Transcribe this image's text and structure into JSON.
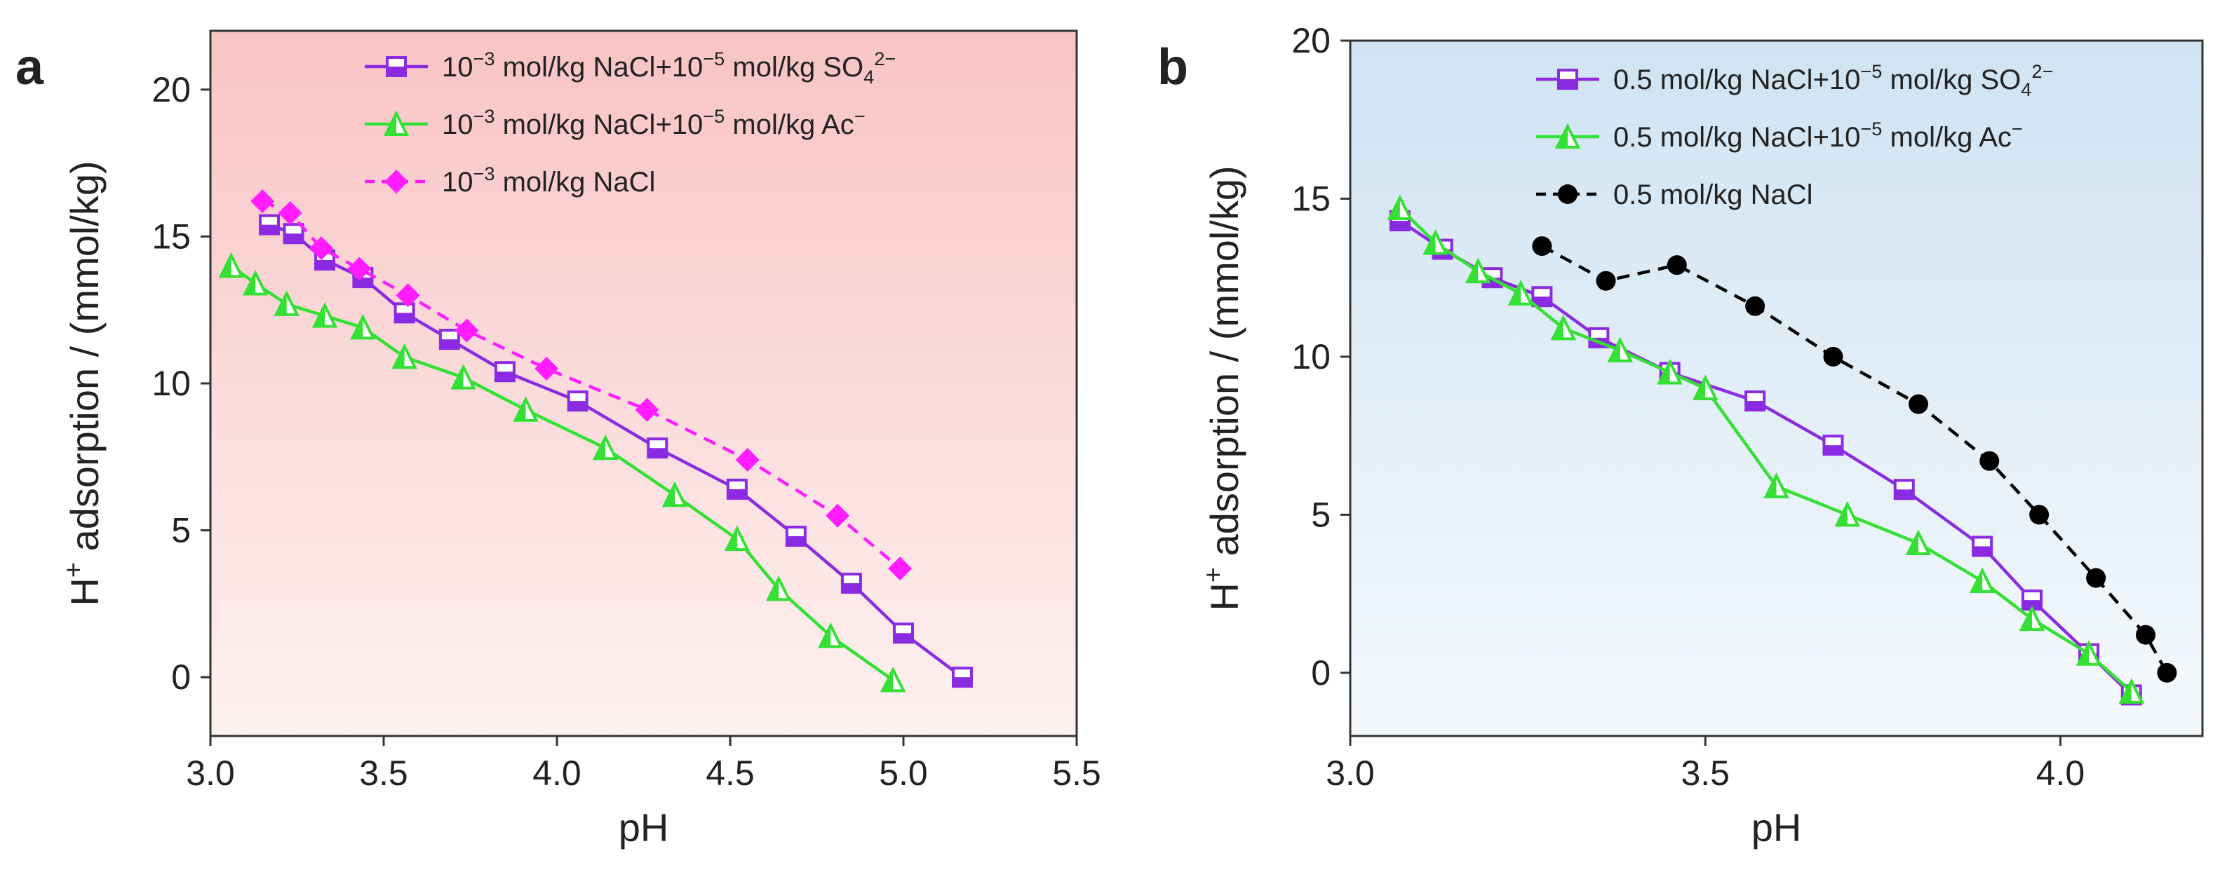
{
  "chart_data": [
    {
      "panel": "a",
      "type": "line",
      "xlabel": "pH",
      "ylabel": "H⁺ adsorption / (mmol/kg)",
      "xlim": [
        3.0,
        5.5
      ],
      "ylim": [
        -2,
        22
      ],
      "xticks": [
        "3.0",
        "3.5",
        "4.0",
        "4.5",
        "5.0",
        "5.5"
      ],
      "yticks": [
        "0",
        "5",
        "10",
        "15",
        "20"
      ],
      "background": [
        "#f9c4c4",
        "#fdf1f1"
      ],
      "legend_position": "top-right",
      "series": [
        {
          "name": "10⁻³ mol/kg NaCl+10⁻⁵ mol/kg SO₄²⁻",
          "color": "#8a2be2",
          "marker": "half-square",
          "line": "solid",
          "x": [
            3.17,
            3.24,
            3.33,
            3.44,
            3.56,
            3.69,
            3.85,
            4.06,
            4.29,
            4.52,
            4.69,
            4.85,
            5.0,
            5.17
          ],
          "y": [
            15.4,
            15.1,
            14.2,
            13.6,
            12.4,
            11.5,
            10.4,
            9.4,
            7.8,
            6.4,
            4.8,
            3.2,
            1.5,
            0.0
          ]
        },
        {
          "name": "10⁻³ mol/kg NaCl+10⁻⁵ mol/kg Ac⁻",
          "color": "#33e033",
          "marker": "half-triangle",
          "line": "solid",
          "x": [
            3.06,
            3.13,
            3.22,
            3.33,
            3.44,
            3.56,
            3.73,
            3.91,
            4.14,
            4.34,
            4.52,
            4.64,
            4.79,
            4.97
          ],
          "y": [
            14.0,
            13.4,
            12.7,
            12.3,
            11.9,
            10.9,
            10.2,
            9.1,
            7.8,
            6.2,
            4.7,
            3.0,
            1.4,
            -0.1
          ]
        },
        {
          "name": "10⁻³ mol/kg NaCl",
          "color": "#ff1cff",
          "marker": "diamond",
          "line": "dashed",
          "x": [
            3.15,
            3.23,
            3.32,
            3.43,
            3.57,
            3.74,
            3.97,
            4.26,
            4.55,
            4.81,
            4.99
          ],
          "y": [
            16.2,
            15.8,
            14.6,
            13.9,
            13.0,
            11.8,
            10.5,
            9.1,
            7.4,
            5.5,
            3.7
          ]
        }
      ]
    },
    {
      "panel": "b",
      "type": "line",
      "xlabel": "pH",
      "ylabel": "H⁺ adsorption / (mmol/kg)",
      "xlim": [
        3.0,
        4.2
      ],
      "ylim": [
        -2,
        20
      ],
      "xticks": [
        "3.0",
        "3.5",
        "4.0"
      ],
      "yticks": [
        "0",
        "5",
        "10",
        "15",
        "20"
      ],
      "background": [
        "#cfe3f2",
        "#f5f9fc"
      ],
      "legend_position": "top-right",
      "series": [
        {
          "name": "0.5 mol/kg NaCl+10⁻⁵ mol/kg SO₄²⁻",
          "color": "#8a2be2",
          "marker": "half-square",
          "line": "solid",
          "x": [
            3.07,
            3.13,
            3.2,
            3.27,
            3.35,
            3.45,
            3.57,
            3.68,
            3.78,
            3.89,
            3.96,
            4.04,
            4.1
          ],
          "y": [
            14.3,
            13.4,
            12.5,
            11.9,
            10.6,
            9.5,
            8.6,
            7.2,
            5.8,
            4.0,
            2.3,
            0.6,
            -0.7
          ]
        },
        {
          "name": "0.5 mol/kg NaCl+10⁻⁵ mol/kg Ac⁻",
          "color": "#33e033",
          "marker": "half-triangle",
          "line": "solid",
          "x": [
            3.07,
            3.12,
            3.18,
            3.24,
            3.3,
            3.38,
            3.45,
            3.5,
            3.6,
            3.7,
            3.8,
            3.89,
            3.96,
            4.04,
            4.1
          ],
          "y": [
            14.7,
            13.6,
            12.7,
            12.0,
            10.9,
            10.2,
            9.5,
            9.0,
            5.9,
            5.0,
            4.1,
            2.9,
            1.7,
            0.6,
            -0.6
          ]
        },
        {
          "name": "0.5 mol/kg NaCl",
          "color": "#000000",
          "marker": "circle",
          "line": "dashed",
          "x": [
            3.27,
            3.36,
            3.46,
            3.57,
            3.68,
            3.8,
            3.9,
            3.97,
            4.05,
            4.12,
            4.15
          ],
          "y": [
            13.5,
            12.4,
            12.9,
            11.6,
            10.0,
            8.5,
            6.7,
            5.0,
            3.0,
            1.2,
            0.0
          ]
        }
      ]
    }
  ]
}
